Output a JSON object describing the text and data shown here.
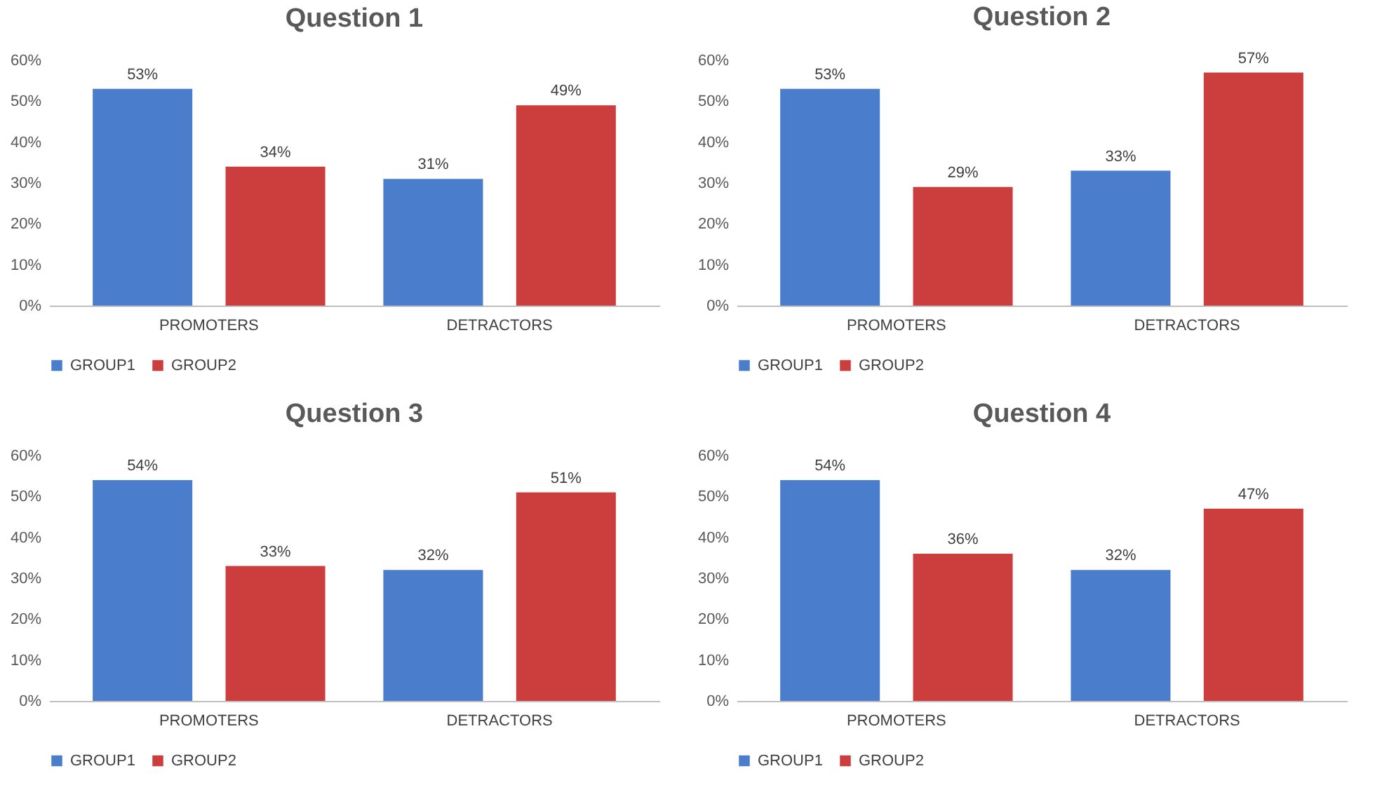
{
  "chart_data": [
    {
      "type": "bar",
      "title": "Question 1",
      "categories": [
        "PROMOTERS",
        "DETRACTORS"
      ],
      "legend": "bottom",
      "ylim": [
        0,
        60
      ],
      "yticks": [
        {
          "value": 0,
          "label": "0%"
        },
        {
          "value": 10,
          "label": "10%"
        },
        {
          "value": 20,
          "label": "20%"
        },
        {
          "value": 30,
          "label": "30%"
        },
        {
          "value": 40,
          "label": "40%"
        },
        {
          "value": 50,
          "label": "50%"
        },
        {
          "value": 60,
          "label": "60%"
        }
      ],
      "series": [
        {
          "name": "GROUP1",
          "color": "#4a7dcc",
          "values": [
            53,
            31
          ],
          "value_labels": [
            "53%",
            "31%"
          ]
        },
        {
          "name": "GROUP2",
          "color": "#cc3d3d",
          "values": [
            34,
            49
          ],
          "value_labels": [
            "34%",
            "49%"
          ]
        }
      ]
    },
    {
      "type": "bar",
      "title": "Question 2",
      "categories": [
        "PROMOTERS",
        "DETRACTORS"
      ],
      "legend": "bottom",
      "ylim": [
        0,
        60
      ],
      "yticks": [
        {
          "value": 0,
          "label": "0%"
        },
        {
          "value": 10,
          "label": "10%"
        },
        {
          "value": 20,
          "label": "20%"
        },
        {
          "value": 30,
          "label": "30%"
        },
        {
          "value": 40,
          "label": "40%"
        },
        {
          "value": 50,
          "label": "50%"
        },
        {
          "value": 60,
          "label": "60%"
        }
      ],
      "series": [
        {
          "name": "GROUP1",
          "color": "#4a7dcc",
          "values": [
            53,
            33
          ],
          "value_labels": [
            "53%",
            "33%"
          ]
        },
        {
          "name": "GROUP2",
          "color": "#cc3d3d",
          "values": [
            29,
            57
          ],
          "value_labels": [
            "29%",
            "57%"
          ]
        }
      ]
    },
    {
      "type": "bar",
      "title": "Question 3",
      "categories": [
        "PROMOTERS",
        "DETRACTORS"
      ],
      "legend": "bottom",
      "ylim": [
        0,
        60
      ],
      "yticks": [
        {
          "value": 0,
          "label": "0%"
        },
        {
          "value": 10,
          "label": "10%"
        },
        {
          "value": 20,
          "label": "20%"
        },
        {
          "value": 30,
          "label": "30%"
        },
        {
          "value": 40,
          "label": "40%"
        },
        {
          "value": 50,
          "label": "50%"
        },
        {
          "value": 60,
          "label": "60%"
        }
      ],
      "series": [
        {
          "name": "GROUP1",
          "color": "#4a7dcc",
          "values": [
            54,
            32
          ],
          "value_labels": [
            "54%",
            "32%"
          ]
        },
        {
          "name": "GROUP2",
          "color": "#cc3d3d",
          "values": [
            33,
            51
          ],
          "value_labels": [
            "33%",
            "51%"
          ]
        }
      ]
    },
    {
      "type": "bar",
      "title": "Question 4",
      "categories": [
        "PROMOTERS",
        "DETRACTORS"
      ],
      "legend": "bottom",
      "ylim": [
        0,
        60
      ],
      "yticks": [
        {
          "value": 0,
          "label": "0%"
        },
        {
          "value": 10,
          "label": "10%"
        },
        {
          "value": 20,
          "label": "20%"
        },
        {
          "value": 30,
          "label": "30%"
        },
        {
          "value": 40,
          "label": "40%"
        },
        {
          "value": 50,
          "label": "50%"
        },
        {
          "value": 60,
          "label": "60%"
        }
      ],
      "series": [
        {
          "name": "GROUP1",
          "color": "#4a7dcc",
          "values": [
            54,
            32
          ],
          "value_labels": [
            "54%",
            "32%"
          ]
        },
        {
          "name": "GROUP2",
          "color": "#cc3d3d",
          "values": [
            36,
            47
          ],
          "value_labels": [
            "36%",
            "47%"
          ]
        }
      ]
    }
  ]
}
